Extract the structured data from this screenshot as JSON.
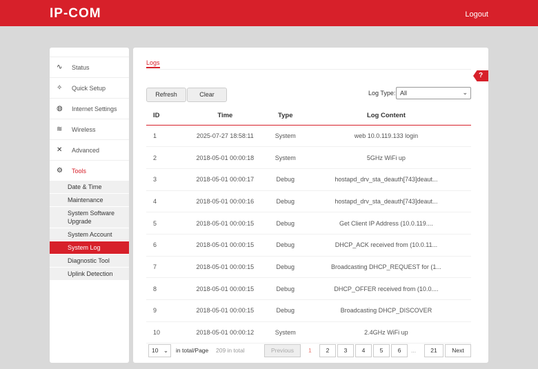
{
  "header": {
    "logo": "IP-COM",
    "logout": "Logout"
  },
  "sidebar": {
    "items": [
      {
        "label": "Status",
        "icon": "∿"
      },
      {
        "label": "Quick Setup",
        "icon": "✧"
      },
      {
        "label": "Internet Settings",
        "icon": "◍"
      },
      {
        "label": "Wireless",
        "icon": "≋"
      },
      {
        "label": "Advanced",
        "icon": "✕"
      },
      {
        "label": "Tools",
        "icon": "⚙"
      }
    ],
    "sub": [
      "Date & Time",
      "Maintenance",
      "System Software Upgrade",
      "System Account",
      "System Log",
      "Diagnostic Tool",
      "Uplink Detection"
    ]
  },
  "main": {
    "tab": "Logs",
    "help": "?",
    "refresh": "Refresh",
    "clear": "Clear",
    "log_type_label": "Log Type:",
    "log_type_value": "All",
    "columns": [
      "ID",
      "Time",
      "Type",
      "Log Content"
    ],
    "rows": [
      [
        "1",
        "2025-07-27 18:58:11",
        "System",
        "web 10.0.119.133 login"
      ],
      [
        "2",
        "2018-05-01 00:00:18",
        "System",
        "5GHz WiFi up"
      ],
      [
        "3",
        "2018-05-01 00:00:17",
        "Debug",
        "hostapd_drv_sta_deauth[743]deaut..."
      ],
      [
        "4",
        "2018-05-01 00:00:16",
        "Debug",
        "hostapd_drv_sta_deauth[743]deaut..."
      ],
      [
        "5",
        "2018-05-01 00:00:15",
        "Debug",
        "Get Client IP Address (10.0.119...."
      ],
      [
        "6",
        "2018-05-01 00:00:15",
        "Debug",
        "DHCP_ACK received from (10.0.11..."
      ],
      [
        "7",
        "2018-05-01 00:00:15",
        "Debug",
        "Broadcasting DHCP_REQUEST for (1..."
      ],
      [
        "8",
        "2018-05-01 00:00:15",
        "Debug",
        "DHCP_OFFER received from (10.0...."
      ],
      [
        "9",
        "2018-05-01 00:00:15",
        "Debug",
        "Broadcasting DHCP_DISCOVER"
      ],
      [
        "10",
        "2018-05-01 00:00:12",
        "System",
        "2.4GHz WiFi up"
      ]
    ],
    "pagination": {
      "per_page": "10",
      "per_page_label": "in total/Page",
      "total": "209 in total",
      "previous": "Previous",
      "current": "1",
      "pages": [
        "2",
        "3",
        "4",
        "5",
        "6"
      ],
      "ellipsis": "...",
      "last": "21",
      "next": "Next"
    }
  }
}
